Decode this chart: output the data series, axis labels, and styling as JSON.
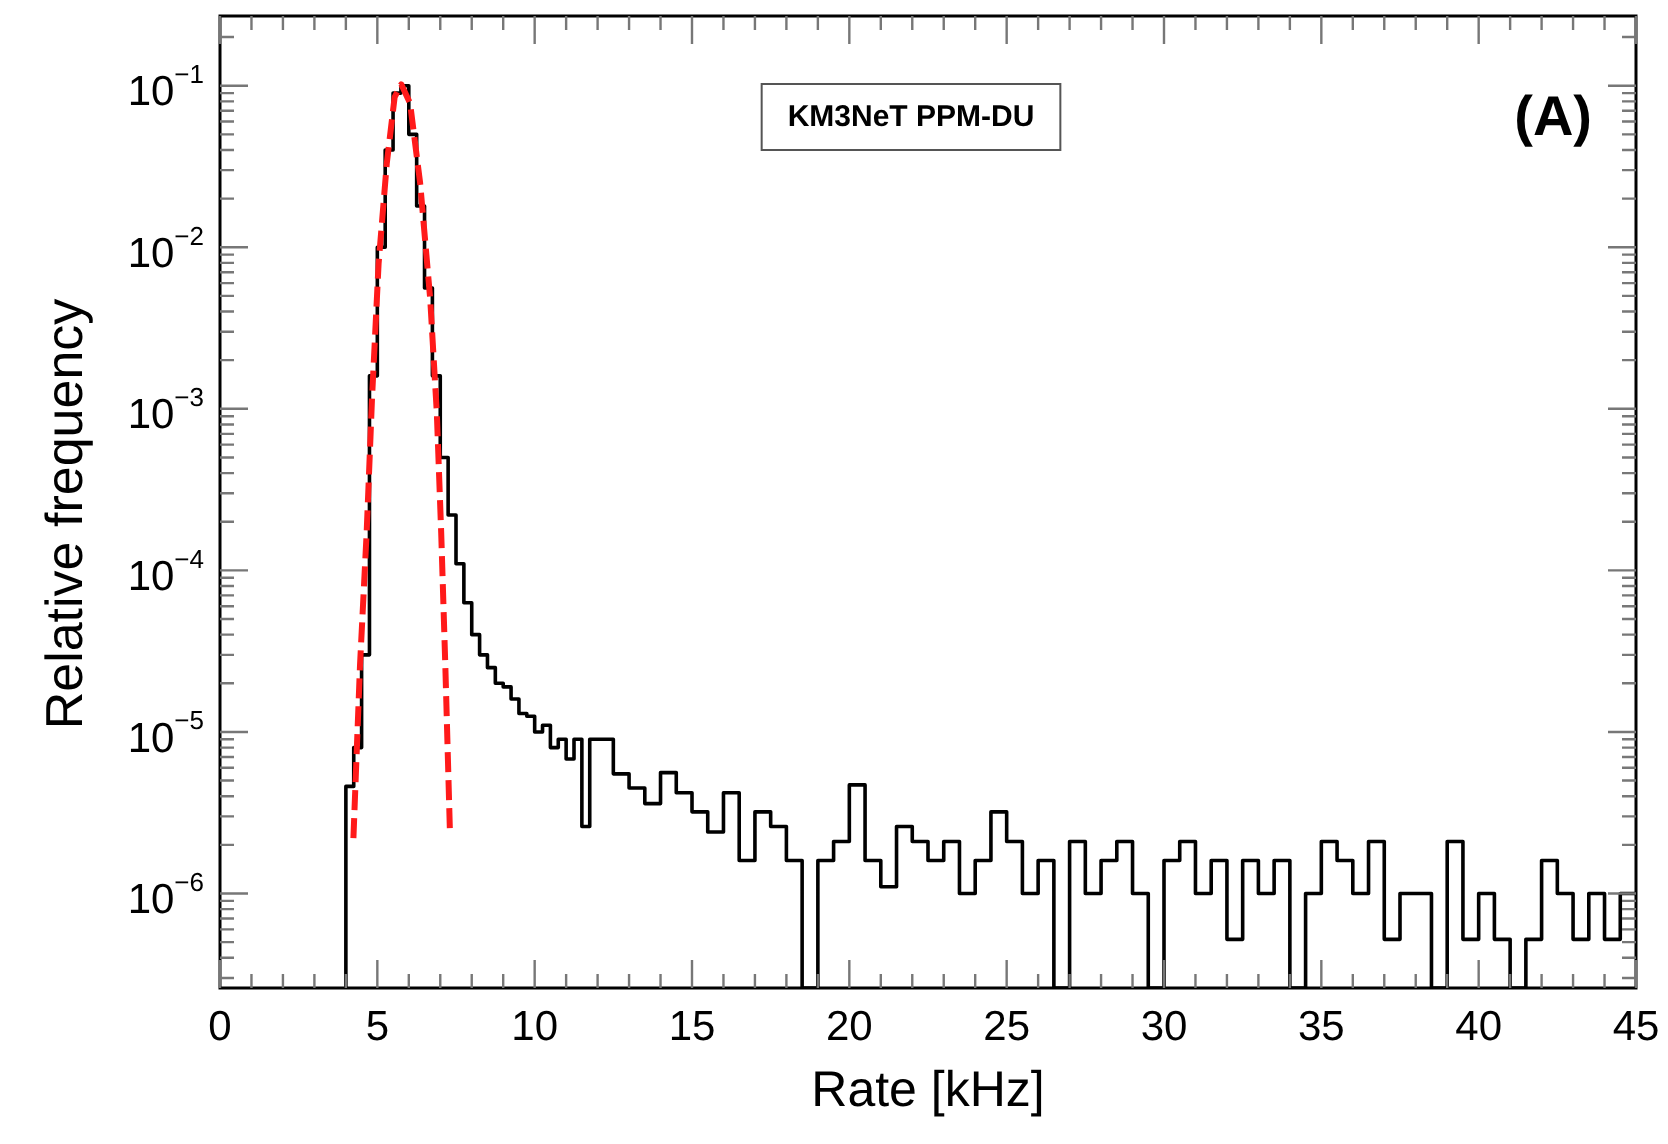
{
  "chart_data": {
    "type": "histogram",
    "xlabel": "Rate [kHz]",
    "ylabel": "Relative frequency",
    "annotations": [
      "KM3NeT PPM-DU",
      "(A)"
    ],
    "color": "#000000",
    "bins": [
      4,
      4.25,
      4.5,
      4.75,
      5,
      5.25,
      5.5,
      5.75,
      6,
      6.25,
      6.5,
      6.75,
      7,
      7.25,
      7.5,
      7.75,
      8,
      8.25,
      8.5,
      8.75,
      9,
      9.25,
      9.5,
      9.75,
      10,
      10.25,
      10.5,
      10.75,
      11,
      11.25,
      11.5,
      11.75,
      12,
      12.5,
      13,
      13.5,
      14,
      14.5,
      15,
      15.5,
      16,
      16.5,
      17,
      17.5,
      18,
      18.5,
      19,
      19.5,
      20,
      20.5,
      21,
      21.5,
      22,
      22.5,
      23,
      23.5,
      24,
      24.5,
      25,
      25.5,
      26,
      26.5,
      27,
      27.5,
      28,
      28.5,
      29,
      29.5,
      30,
      30.5,
      31,
      31.5,
      32,
      32.5,
      33,
      33.5,
      34,
      34.5,
      35,
      35.5,
      36,
      36.5,
      37,
      37.5,
      38,
      38.5,
      39,
      39.5,
      40,
      40.5,
      41,
      41.5,
      42,
      42.5,
      43,
      43.5,
      44,
      44.5,
      45
    ],
    "values": [
      4.6e-06,
      8e-06,
      3e-05,
      0.0016,
      0.01,
      0.04,
      0.09,
      0.1,
      0.05,
      0.018,
      0.0056,
      0.0016,
      0.0005,
      0.00022,
      0.00011,
      6.3e-05,
      4e-05,
      3e-05,
      2.5e-05,
      2e-05,
      1.9e-05,
      1.6e-05,
      1.3e-05,
      1.25e-05,
      1e-05,
      1.1e-05,
      8e-06,
      9e-06,
      6.8e-06,
      9e-06,
      2.6e-06,
      9e-06,
      9e-06,
      5.5e-06,
      4.5e-06,
      3.6e-06,
      5.6e-06,
      4.2e-06,
      3.2e-06,
      2.4e-06,
      4.2e-06,
      1.6e-06,
      3.2e-06,
      2.6e-06,
      1.6e-06,
      null,
      1.6e-06,
      2.1e-06,
      4.7e-06,
      1.6e-06,
      1.1e-06,
      2.6e-06,
      2.1e-06,
      1.6e-06,
      2.1e-06,
      1e-06,
      1.6e-06,
      3.2e-06,
      2.1e-06,
      1e-06,
      1.6e-06,
      null,
      2.1e-06,
      1e-06,
      1.6e-06,
      2.1e-06,
      1e-06,
      null,
      1.6e-06,
      2.1e-06,
      1e-06,
      1.6e-06,
      5.2e-07,
      1.6e-06,
      1e-06,
      1.6e-06,
      null,
      1e-06,
      2.1e-06,
      1.6e-06,
      1e-06,
      2.1e-06,
      5.2e-07,
      1e-06,
      1e-06,
      null,
      2.1e-06,
      5.2e-07,
      1e-06,
      5.2e-07,
      null,
      5.2e-07,
      1.6e-06,
      1e-06,
      5.2e-07,
      1e-06,
      5.2e-07,
      1e-06
    ],
    "series": [
      {
        "type": "line",
        "color": "#ff1a1a",
        "line_style": "dashed",
        "marker": "none",
        "x": [
          4.24,
          4.45,
          4.66,
          4.83,
          5.04,
          5.3,
          5.55,
          5.76,
          6.04,
          6.36,
          6.68,
          6.89,
          7.03,
          7.16,
          7.31
        ],
        "values": [
          2.2e-06,
          2.6e-05,
          0.00017,
          0.00115,
          0.0079,
          0.033,
          0.085,
          0.102,
          0.078,
          0.025,
          0.0048,
          0.00095,
          0.00017,
          2.6e-05,
          2.3e-06
        ]
      }
    ],
    "log": true,
    "xlim": [
      0,
      45
    ],
    "xticks": [
      0,
      {
        "value": 1,
        "label": null
      },
      {
        "value": 2,
        "label": null
      },
      {
        "value": 3,
        "label": null
      },
      {
        "value": 4,
        "label": null
      },
      5,
      {
        "value": 6,
        "label": null
      },
      {
        "value": 7,
        "label": null
      },
      {
        "value": 8,
        "label": null
      },
      {
        "value": 9,
        "label": null
      },
      10,
      {
        "value": 11,
        "label": null
      },
      {
        "value": 12,
        "label": null
      },
      {
        "value": 13,
        "label": null
      },
      {
        "value": 14,
        "label": null
      },
      15,
      {
        "value": 16,
        "label": null
      },
      {
        "value": 17,
        "label": null
      },
      {
        "value": 18,
        "label": null
      },
      {
        "value": 19,
        "label": null
      },
      20,
      {
        "value": 21,
        "label": null
      },
      {
        "value": 22,
        "label": null
      },
      {
        "value": 23,
        "label": null
      },
      {
        "value": 24,
        "label": null
      },
      25,
      {
        "value": 26,
        "label": null
      },
      {
        "value": 27,
        "label": null
      },
      {
        "value": 28,
        "label": null
      },
      {
        "value": 29,
        "label": null
      },
      30,
      {
        "value": 31,
        "label": null
      },
      {
        "value": 32,
        "label": null
      },
      {
        "value": 33,
        "label": null
      },
      {
        "value": 34,
        "label": null
      },
      35,
      {
        "value": 36,
        "label": null
      },
      {
        "value": 37,
        "label": null
      },
      {
        "value": 38,
        "label": null
      },
      {
        "value": 39,
        "label": null
      },
      40,
      {
        "value": 41,
        "label": null
      },
      {
        "value": 42,
        "label": null
      },
      {
        "value": 43,
        "label": null
      },
      {
        "value": 44,
        "label": null
      },
      45
    ],
    "ylim": [
      2.6e-07,
      0.27
    ],
    "yticks": [
      {
        "value": 3e-07,
        "label": null
      },
      {
        "value": 4e-07,
        "label": null
      },
      {
        "value": 5e-07,
        "label": null
      },
      {
        "value": 6e-07,
        "label": null
      },
      {
        "value": 7e-07,
        "label": null
      },
      {
        "value": 8e-07,
        "label": null
      },
      {
        "value": 9e-07,
        "label": null
      },
      {
        "value": 1e-06,
        "label": "10$^{−6}$"
      },
      {
        "value": 2e-06,
        "label": null
      },
      {
        "value": 3e-06,
        "label": null
      },
      {
        "value": 4e-06,
        "label": null
      },
      {
        "value": 5e-06,
        "label": null
      },
      {
        "value": 6e-06,
        "label": null
      },
      {
        "value": 7e-06,
        "label": null
      },
      {
        "value": 8e-06,
        "label": null
      },
      {
        "value": 9e-06,
        "label": null
      },
      {
        "value": 1e-05,
        "label": "10$^{−5}$"
      },
      {
        "value": 2e-05,
        "label": null
      },
      {
        "value": 3e-05,
        "label": null
      },
      {
        "value": 4e-05,
        "label": null
      },
      {
        "value": 5e-05,
        "label": null
      },
      {
        "value": 6e-05,
        "label": null
      },
      {
        "value": 7e-05,
        "label": null
      },
      {
        "value": 8e-05,
        "label": null
      },
      {
        "value": 9e-05,
        "label": null
      },
      {
        "value": 0.0001,
        "label": "10$^{−4}$"
      },
      {
        "value": 0.0002,
        "label": null
      },
      {
        "value": 0.0003,
        "label": null
      },
      {
        "value": 0.0004,
        "label": null
      },
      {
        "value": 0.0005,
        "label": null
      },
      {
        "value": 0.0006,
        "label": null
      },
      {
        "value": 0.0007,
        "label": null
      },
      {
        "value": 0.0008,
        "label": null
      },
      {
        "value": 0.0009,
        "label": null
      },
      {
        "value": 0.001,
        "label": "10$^{−3}$"
      },
      {
        "value": 0.002,
        "label": null
      },
      {
        "value": 0.003,
        "label": null
      },
      {
        "value": 0.004,
        "label": null
      },
      {
        "value": 0.005,
        "label": null
      },
      {
        "value": 0.006,
        "label": null
      },
      {
        "value": 0.007,
        "label": null
      },
      {
        "value": 0.008,
        "label": null
      },
      {
        "value": 0.009,
        "label": null
      },
      {
        "value": 0.01,
        "label": "10$^{−2}$"
      },
      {
        "value": 0.02,
        "label": null
      },
      {
        "value": 0.03,
        "label": null
      },
      {
        "value": 0.04,
        "label": null
      },
      {
        "value": 0.05,
        "label": null
      },
      {
        "value": 0.06,
        "label": null
      },
      {
        "value": 0.07,
        "label": null
      },
      {
        "value": 0.08,
        "label": null
      },
      {
        "value": 0.09,
        "label": null
      },
      {
        "value": 0.1,
        "label": "10$^{−1}$"
      },
      {
        "value": 0.2,
        "label": null
      }
    ],
    "grid": false,
    "legend": false
  }
}
